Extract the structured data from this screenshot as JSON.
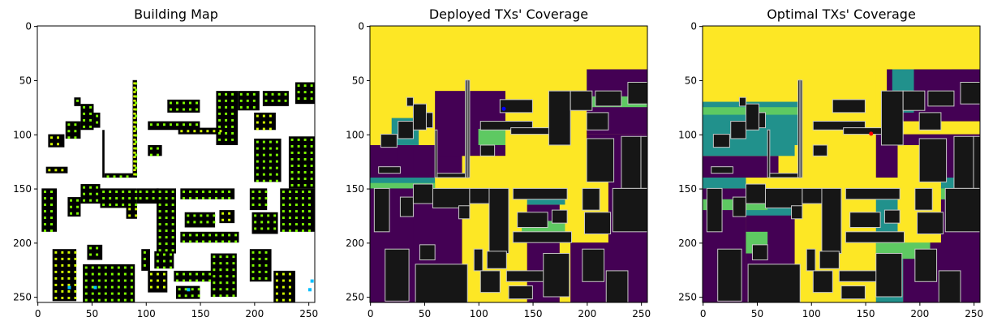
{
  "figure": {
    "panels": [
      {
        "title": "Building Map",
        "xticks": [
          "0",
          "50",
          "100",
          "150",
          "200",
          "250"
        ],
        "yticks": [
          "0",
          "50",
          "100",
          "150",
          "200",
          "250"
        ]
      },
      {
        "title": "Deployed TXs' Coverage",
        "xticks": [
          "0",
          "50",
          "100",
          "150",
          "200",
          "250"
        ],
        "yticks": [
          "0",
          "50",
          "100",
          "150",
          "200",
          "250"
        ]
      },
      {
        "title": "Optimal TXs' Coverage",
        "xticks": [
          "0",
          "50",
          "100",
          "150",
          "200",
          "250"
        ],
        "yticks": [
          "0",
          "50",
          "100",
          "150",
          "200",
          "250"
        ]
      }
    ]
  },
  "chart_data": [
    {
      "type": "heatmap",
      "title": "Building Map",
      "xlim": [
        0,
        256
      ],
      "ylim": [
        256,
        0
      ],
      "xticks": [
        0,
        50,
        100,
        150,
        200,
        250
      ],
      "yticks": [
        0,
        50,
        100,
        150,
        200,
        250
      ],
      "colors": {
        "background": "#ffffff",
        "building": "#000000",
        "candidate_tx": "#7fff00",
        "candidate_tx_alt": "#d4ff00",
        "deployed_tx": "#00bfff"
      },
      "buildings": [
        [
          10,
          25,
          100,
          112
        ],
        [
          26,
          40,
          88,
          104
        ],
        [
          40,
          52,
          72,
          96
        ],
        [
          34,
          40,
          66,
          74
        ],
        [
          52,
          58,
          80,
          94
        ],
        [
          60,
          62,
          96,
          140
        ],
        [
          62,
          88,
          136,
          140
        ],
        [
          88,
          92,
          50,
          140
        ],
        [
          120,
          150,
          68,
          80
        ],
        [
          102,
          150,
          88,
          96
        ],
        [
          130,
          170,
          94,
          100
        ],
        [
          102,
          115,
          110,
          120
        ],
        [
          165,
          185,
          60,
          110
        ],
        [
          185,
          205,
          60,
          78
        ],
        [
          208,
          232,
          60,
          74
        ],
        [
          200,
          220,
          80,
          96
        ],
        [
          238,
          256,
          52,
          72
        ],
        [
          200,
          225,
          104,
          144
        ],
        [
          250,
          256,
          102,
          150
        ],
        [
          232,
          250,
          102,
          150
        ],
        [
          8,
          28,
          130,
          136
        ],
        [
          4,
          18,
          150,
          190
        ],
        [
          28,
          40,
          158,
          176
        ],
        [
          40,
          58,
          146,
          164
        ],
        [
          58,
          92,
          150,
          168
        ],
        [
          82,
          92,
          166,
          178
        ],
        [
          92,
          112,
          150,
          164
        ],
        [
          110,
          128,
          150,
          210
        ],
        [
          132,
          182,
          150,
          160
        ],
        [
          136,
          164,
          172,
          186
        ],
        [
          168,
          182,
          170,
          182
        ],
        [
          132,
          186,
          190,
          200
        ],
        [
          196,
          212,
          150,
          170
        ],
        [
          224,
          256,
          150,
          190
        ],
        [
          198,
          222,
          172,
          192
        ],
        [
          14,
          36,
          206,
          254
        ],
        [
          46,
          60,
          202,
          216
        ],
        [
          42,
          90,
          220,
          256
        ],
        [
          96,
          104,
          206,
          226
        ],
        [
          108,
          126,
          208,
          224
        ],
        [
          102,
          120,
          226,
          246
        ],
        [
          126,
          162,
          226,
          236
        ],
        [
          128,
          150,
          240,
          252
        ],
        [
          160,
          184,
          210,
          250
        ],
        [
          196,
          216,
          206,
          236
        ],
        [
          218,
          238,
          226,
          256
        ]
      ],
      "candidate_tx_grid_step": 6,
      "deployed_tx_points": [
        [
          28,
          240
        ],
        [
          52,
          240
        ],
        [
          138,
          242
        ],
        [
          250,
          242
        ],
        [
          252,
          234
        ]
      ]
    },
    {
      "type": "heatmap",
      "title": "Deployed TXs' Coverage",
      "xlim": [
        0,
        256
      ],
      "ylim": [
        256,
        0
      ],
      "xticks": [
        0,
        50,
        100,
        150,
        200,
        250
      ],
      "yticks": [
        0,
        50,
        100,
        150,
        200,
        250
      ],
      "colormap": "viridis",
      "levels": [
        "#440154",
        "#21918c",
        "#5ec962",
        "#fde725"
      ],
      "tx_points": [
        {
          "x": 123,
          "y": 76,
          "color": "#0000ff"
        }
      ]
    },
    {
      "type": "heatmap",
      "title": "Optimal TXs' Coverage",
      "xlim": [
        0,
        256
      ],
      "ylim": [
        256,
        0
      ],
      "xticks": [
        0,
        50,
        100,
        150,
        200,
        250
      ],
      "yticks": [
        0,
        50,
        100,
        150,
        200,
        250
      ],
      "colormap": "viridis",
      "levels": [
        "#440154",
        "#21918c",
        "#5ec962",
        "#fde725"
      ],
      "tx_points": [
        {
          "x": 155,
          "y": 99,
          "color": "#ff0000"
        }
      ]
    }
  ]
}
